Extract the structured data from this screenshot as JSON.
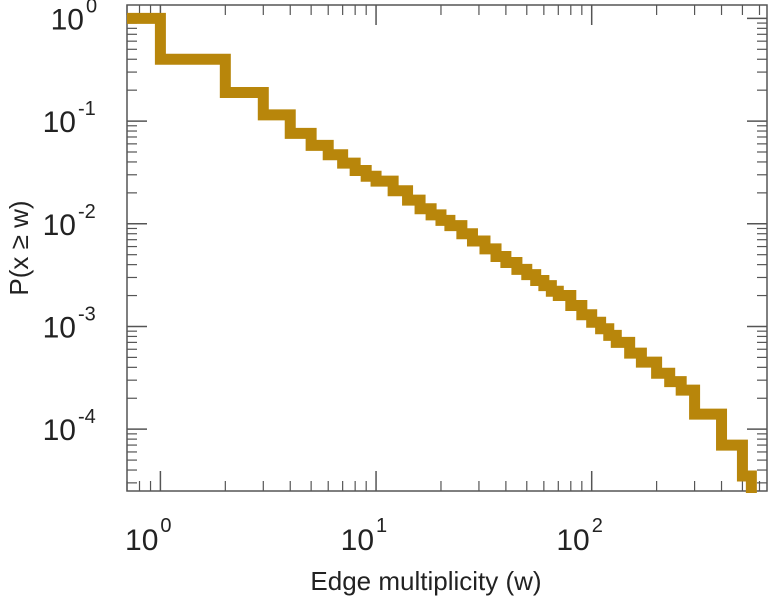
{
  "chart_data": {
    "type": "line",
    "line_style": "step",
    "xscale": "log",
    "yscale": "log",
    "xlabel": "Edge multiplicity (w)",
    "ylabel": "P(x ≥ w)",
    "xlim": [
      0.7,
      650
    ],
    "ylim": [
      2.5e-05,
      1.35
    ],
    "grid": false,
    "legend": "none",
    "x_ticks": [
      {
        "base": "10",
        "exp": "0",
        "value": 1
      },
      {
        "base": "10",
        "exp": "1",
        "value": 10
      },
      {
        "base": "10",
        "exp": "2",
        "value": 100
      }
    ],
    "y_ticks": [
      {
        "base": "10",
        "exp": "0",
        "value": 1
      },
      {
        "base": "10",
        "exp": "-1",
        "value": 0.1
      },
      {
        "base": "10",
        "exp": "-2",
        "value": 0.01
      },
      {
        "base": "10",
        "exp": "-3",
        "value": 0.001
      },
      {
        "base": "10",
        "exp": "-4",
        "value": 0.0001
      }
    ],
    "series": [
      {
        "color": "#b8860b",
        "x": [
          0.7,
          1,
          2,
          3,
          4,
          5,
          6,
          7,
          8,
          9,
          10,
          12,
          14,
          16,
          18,
          20,
          22,
          25,
          28,
          32,
          36,
          40,
          45,
          50,
          55,
          60,
          65,
          70,
          80,
          90,
          100,
          110,
          120,
          130,
          150,
          170,
          200,
          230,
          260,
          300,
          400,
          500,
          550
        ],
        "y": [
          1.0,
          0.4,
          0.19,
          0.115,
          0.076,
          0.058,
          0.047,
          0.039,
          0.033,
          0.029,
          0.026,
          0.021,
          0.017,
          0.014,
          0.0122,
          0.0108,
          0.0096,
          0.008,
          0.0068,
          0.0057,
          0.0048,
          0.0042,
          0.0036,
          0.0032,
          0.0028,
          0.0025,
          0.0022,
          0.002,
          0.0016,
          0.0013,
          0.0011,
          0.00095,
          0.00082,
          0.0007,
          0.00055,
          0.00045,
          0.00035,
          0.00029,
          0.00024,
          0.00014,
          7e-05,
          3.5e-05,
          2.5e-05
        ]
      }
    ]
  }
}
